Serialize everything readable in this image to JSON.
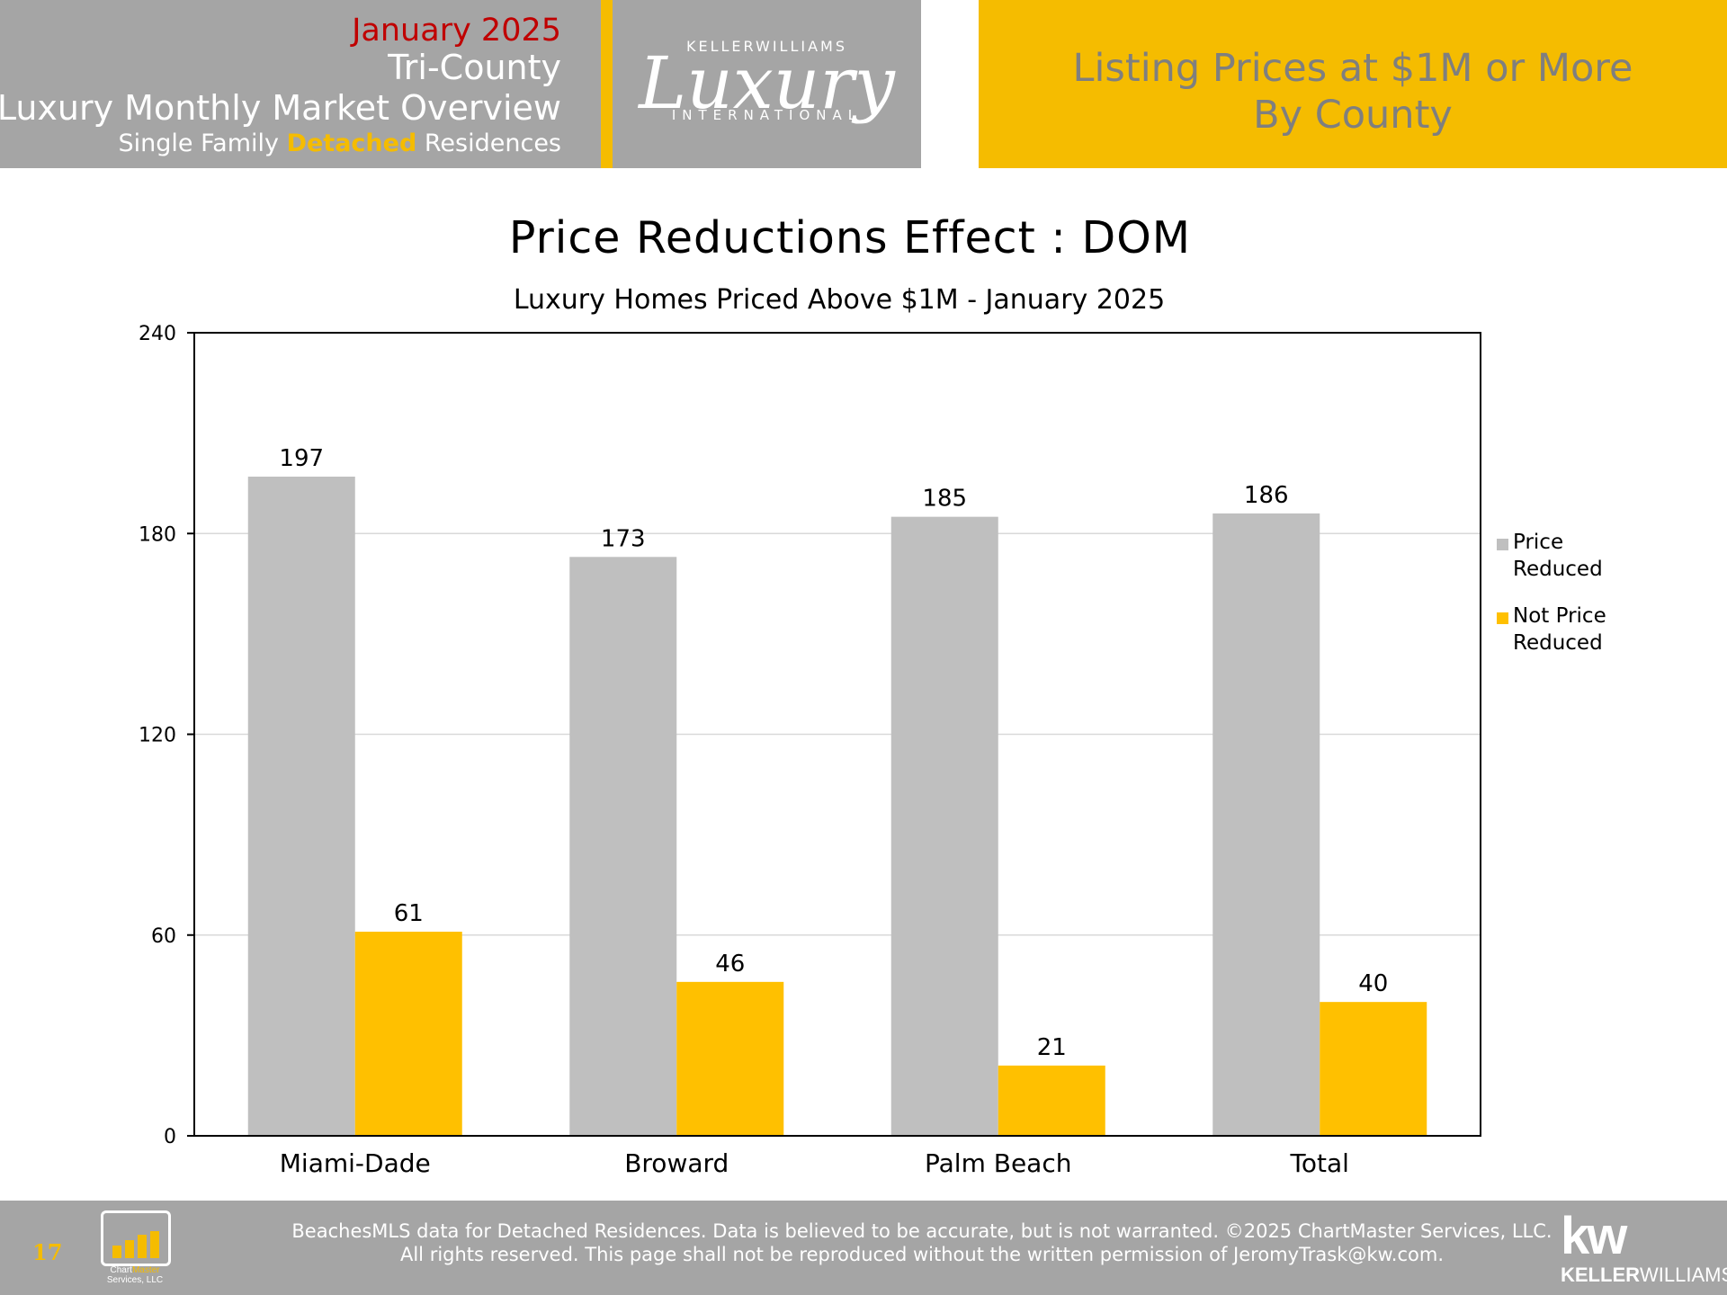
{
  "header": {
    "date": "January 2025",
    "region": "Tri-County",
    "report": "Luxury Monthly Market Overview",
    "segment_pre": "Single Family ",
    "segment_highlight": "Detached",
    "segment_post": " Residences",
    "logo_top": "KELLERWILLIAMS",
    "logo_script": "Luxury",
    "logo_bottom": "INTERNATIONAL",
    "right_line1": "Listing Prices at $1M or More",
    "right_line2": "By County"
  },
  "chart_data": {
    "type": "bar",
    "title": "Price Reductions Effect : DOM",
    "subtitle": "Luxury Homes Priced Above $1M - January 2025",
    "categories": [
      "Miami-Dade",
      "Broward",
      "Palm Beach",
      "Total"
    ],
    "series": [
      {
        "name": "Price Reduced",
        "legend_lines": [
          "Price",
          "Reduced"
        ],
        "color": "#bfbfbf",
        "values": [
          197,
          173,
          185,
          186
        ]
      },
      {
        "name": "Not Price Reduced",
        "legend_lines": [
          "Not Price",
          "Reduced"
        ],
        "color": "#ffc000",
        "values": [
          61,
          46,
          21,
          40
        ]
      }
    ],
    "ylim": [
      0,
      240
    ],
    "yticks": [
      0,
      60,
      120,
      180,
      240
    ],
    "grid": true,
    "legend": "right"
  },
  "footer": {
    "page_number": "17",
    "logo_line1_a": "Chart",
    "logo_line1_b": "Master",
    "logo_line2": "Services, LLC",
    "line1": "BeachesMLS data for Detached Residences.  Data is believed to be accurate, but is not warranted.   ©2025  ChartMaster Services, LLC.",
    "line2": "All rights reserved. This page shall not be reproduced without the written permission of JeromyTrask@kw.com.",
    "kw_mark": "kw",
    "kw_name_a": "KELLER",
    "kw_name_b": "WILLIAMS."
  }
}
